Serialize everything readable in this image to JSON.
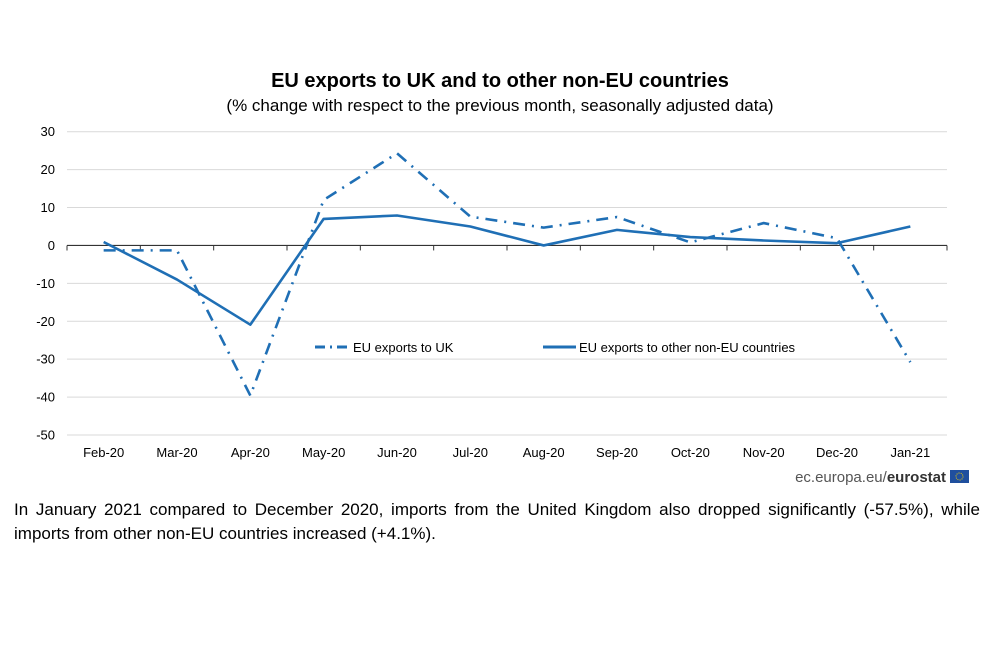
{
  "chart_data": {
    "type": "line",
    "title": "EU exports  to UK and  to other non-EU countries",
    "subtitle": "(% change with respect to the previous month, seasonally adjusted data)",
    "categories": [
      "Feb-20",
      "Mar-20",
      "Apr-20",
      "May-20",
      "Jun-20",
      "Jul-20",
      "Aug-20",
      "Sep-20",
      "Oct-20",
      "Nov-20",
      "Dec-20",
      "Jan-21"
    ],
    "ylim": [
      -50,
      30
    ],
    "yticks": [
      "30",
      "20",
      "10",
      "0",
      "-10",
      "-20",
      "-30",
      "-40",
      "-50"
    ],
    "grid": true,
    "legend_position": "center",
    "series": [
      {
        "name": "EU exports to UK",
        "style": "dash-dot",
        "color": "#1f6fb5",
        "values": [
          -1.3,
          -1.3,
          -39.6,
          12.0,
          24.3,
          7.6,
          4.7,
          7.5,
          0.8,
          5.9,
          1.9,
          -30.8
        ]
      },
      {
        "name": "EU exports to other non-EU countries",
        "style": "solid",
        "color": "#1f6fb5",
        "values": [
          0.9,
          -9.0,
          -20.9,
          7.0,
          7.9,
          5.0,
          0.0,
          4.1,
          2.2,
          1.3,
          0.6,
          5.0
        ]
      }
    ]
  },
  "source": {
    "prefix": "ec.europa.eu/",
    "brand": "eurostat"
  },
  "note": "In January 2021 compared to December 2020, imports from the United Kingdom also dropped significantly (-57.5%), while imports from other non-EU countries increased (+4.1%)."
}
